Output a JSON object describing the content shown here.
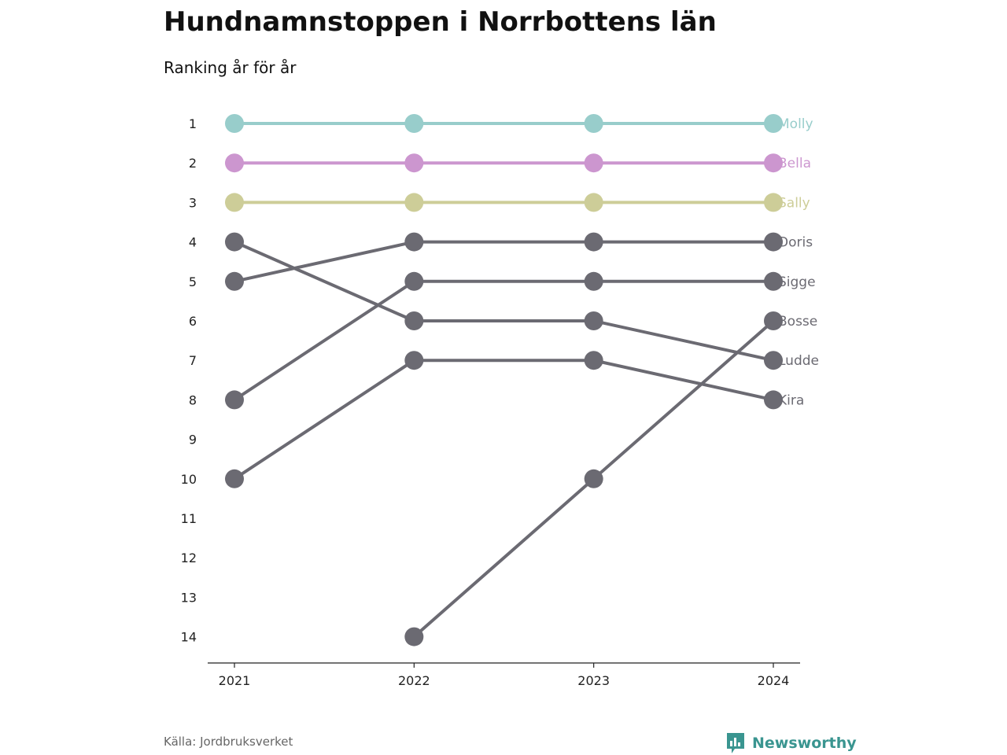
{
  "header": {
    "title": "Hundnamnstoppen i Norrbottens län",
    "subtitle": "Ranking år för år"
  },
  "footer": {
    "source": "Källa: Jordbruksverket",
    "brand": "Newsworthy",
    "brand_icon": "bar-chart-icon",
    "brand_color": "#3a9590"
  },
  "chart_data": {
    "type": "line",
    "title": "Hundnamnstoppen i Norrbottens län",
    "subtitle": "Ranking år för år",
    "x": [
      "2021",
      "2022",
      "2023",
      "2024"
    ],
    "y_ticks": [
      1,
      2,
      3,
      4,
      5,
      6,
      7,
      8,
      9,
      10,
      11,
      12,
      13,
      14
    ],
    "ylim": [
      1,
      14
    ],
    "y_reversed": true,
    "grid": false,
    "series": [
      {
        "name": "Molly",
        "values": [
          1,
          1,
          1,
          1
        ],
        "color": "#98cdcb"
      },
      {
        "name": "Bella",
        "values": [
          2,
          2,
          2,
          2
        ],
        "color": "#cc96cf"
      },
      {
        "name": "Sally",
        "values": [
          3,
          3,
          3,
          3
        ],
        "color": "#cdcd98"
      },
      {
        "name": "Doris",
        "values": [
          5,
          4,
          4,
          4
        ],
        "color": "#6b6a72"
      },
      {
        "name": "Sigge",
        "values": [
          8,
          5,
          5,
          5
        ],
        "color": "#6b6a72"
      },
      {
        "name": "Bosse",
        "values": [
          null,
          14,
          10,
          6
        ],
        "color": "#6b6a72"
      },
      {
        "name": "Ludde",
        "values": [
          4,
          6,
          6,
          7
        ],
        "color": "#6b6a72"
      },
      {
        "name": "Kira",
        "values": [
          10,
          7,
          7,
          8
        ],
        "color": "#6b6a72"
      }
    ]
  }
}
